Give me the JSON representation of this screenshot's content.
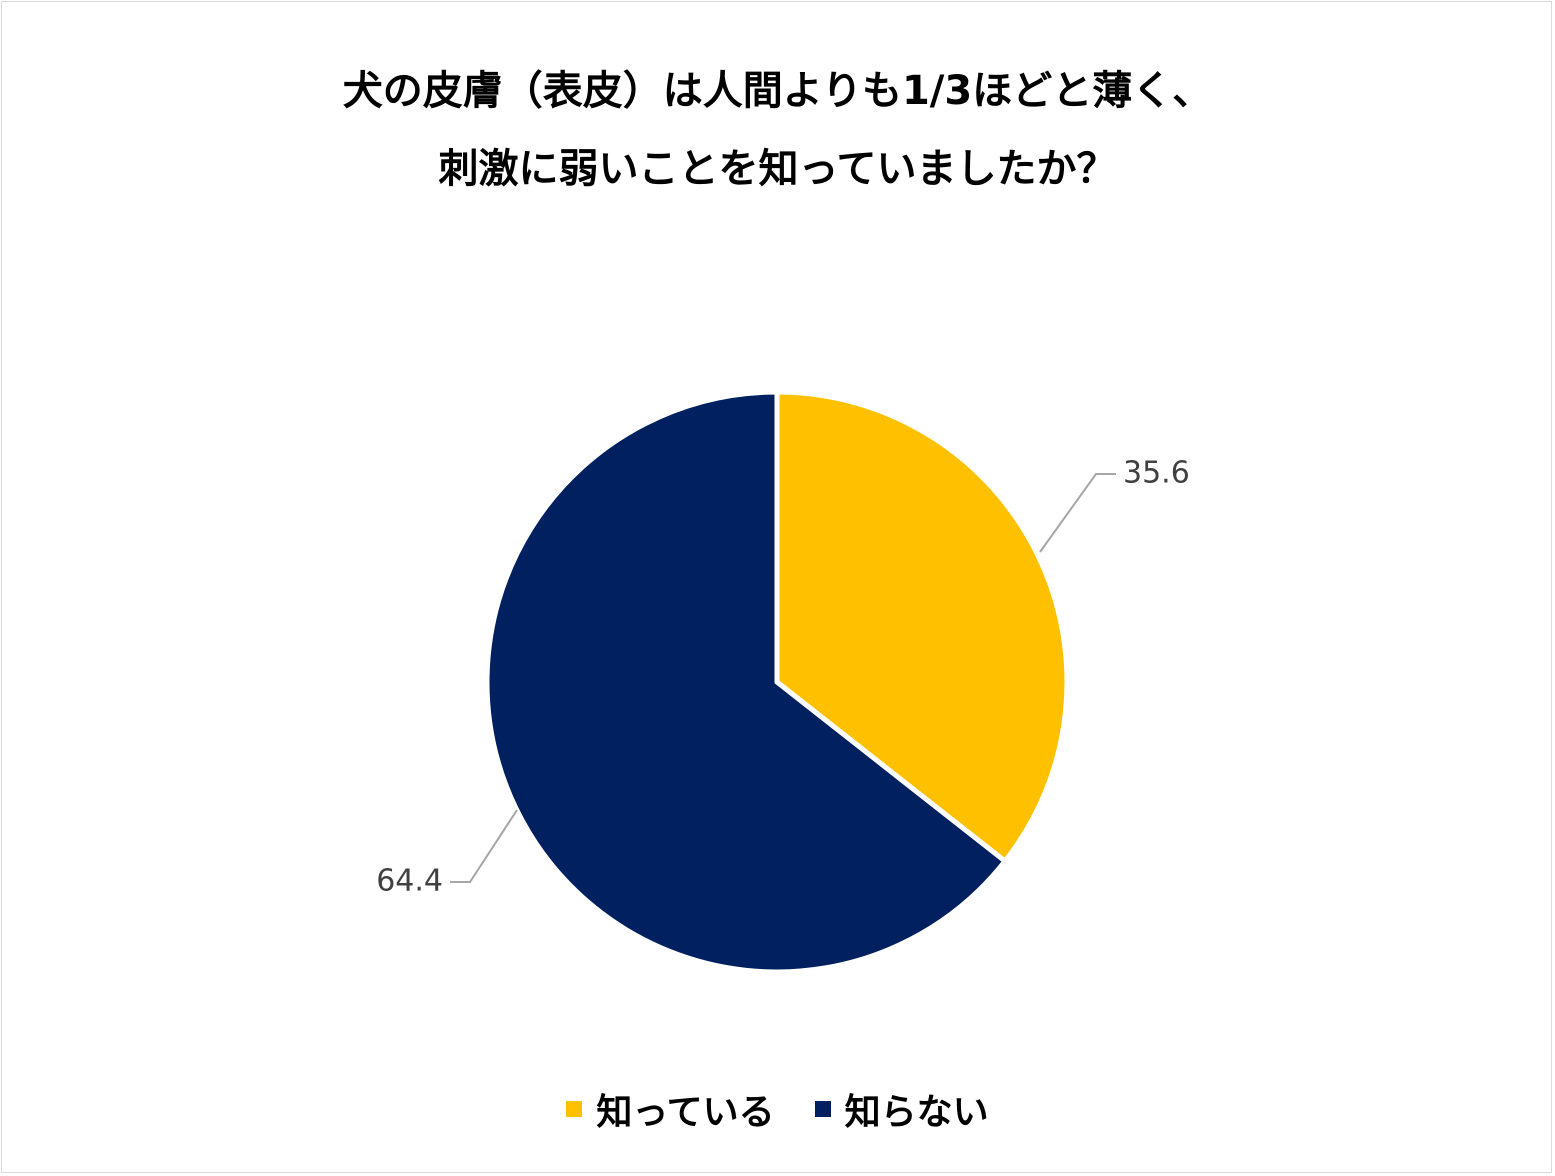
{
  "chart_data": {
    "type": "pie",
    "title_lines": [
      "犬の皮膚（表皮）は人間よりも1/3ほどと薄く、",
      "刺激に弱いことを知っていましたか？"
    ],
    "categories": [
      "知っている",
      "知らない"
    ],
    "values": [
      35.6,
      64.4
    ],
    "value_labels": [
      "35.6",
      "64.4"
    ],
    "colors": [
      "#FFC000",
      "#002060"
    ],
    "start_angle": "12 o'clock",
    "direction": "clockwise",
    "legend_position": "bottom"
  }
}
